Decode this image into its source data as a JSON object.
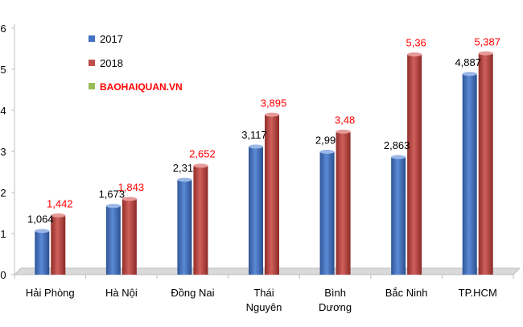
{
  "chart_data": {
    "type": "bar",
    "title": "",
    "xlabel": "",
    "ylabel": "",
    "ylim": [
      0,
      6
    ],
    "yticks": [
      0,
      1,
      2,
      3,
      4,
      5,
      6
    ],
    "grid": false,
    "legend_position": "top-left",
    "categories": [
      "Hải Phòng",
      "Hà Nội",
      "Đồng Nai",
      "Thái Nguyên",
      "Bình Dương",
      "Bắc Ninh",
      "TP.HCM"
    ],
    "category_lines": [
      [
        "Hải Phòng"
      ],
      [
        "Hà Nội"
      ],
      [
        "Đồng Nai"
      ],
      [
        "Thái",
        "Nguyên"
      ],
      [
        "Bình",
        "Dương"
      ],
      [
        "Bắc Ninh"
      ],
      [
        "TP.HCM"
      ]
    ],
    "series": [
      {
        "name": "2017",
        "color": "#4472c4",
        "values": [
          1.064,
          1.673,
          2.31,
          3.117,
          2.99,
          2.863,
          4.887
        ],
        "labels": [
          "1,064",
          "1,673",
          "2,31",
          "3,117",
          "2,99",
          "2,863",
          "4,887"
        ],
        "label_color": "#000000"
      },
      {
        "name": "2018",
        "color": "#c0504d",
        "values": [
          1.442,
          1.843,
          2.652,
          3.895,
          3.48,
          5.36,
          5.387
        ],
        "labels": [
          "1,442",
          "1,843",
          "2,652",
          "3,895",
          "3,48",
          "5,36",
          "5,387"
        ],
        "label_color": "#ff0000"
      }
    ],
    "legend_source": {
      "label": "BAOHAIQUAN.VN",
      "color": "#9bbb59",
      "text_color": "#ff0000"
    }
  }
}
